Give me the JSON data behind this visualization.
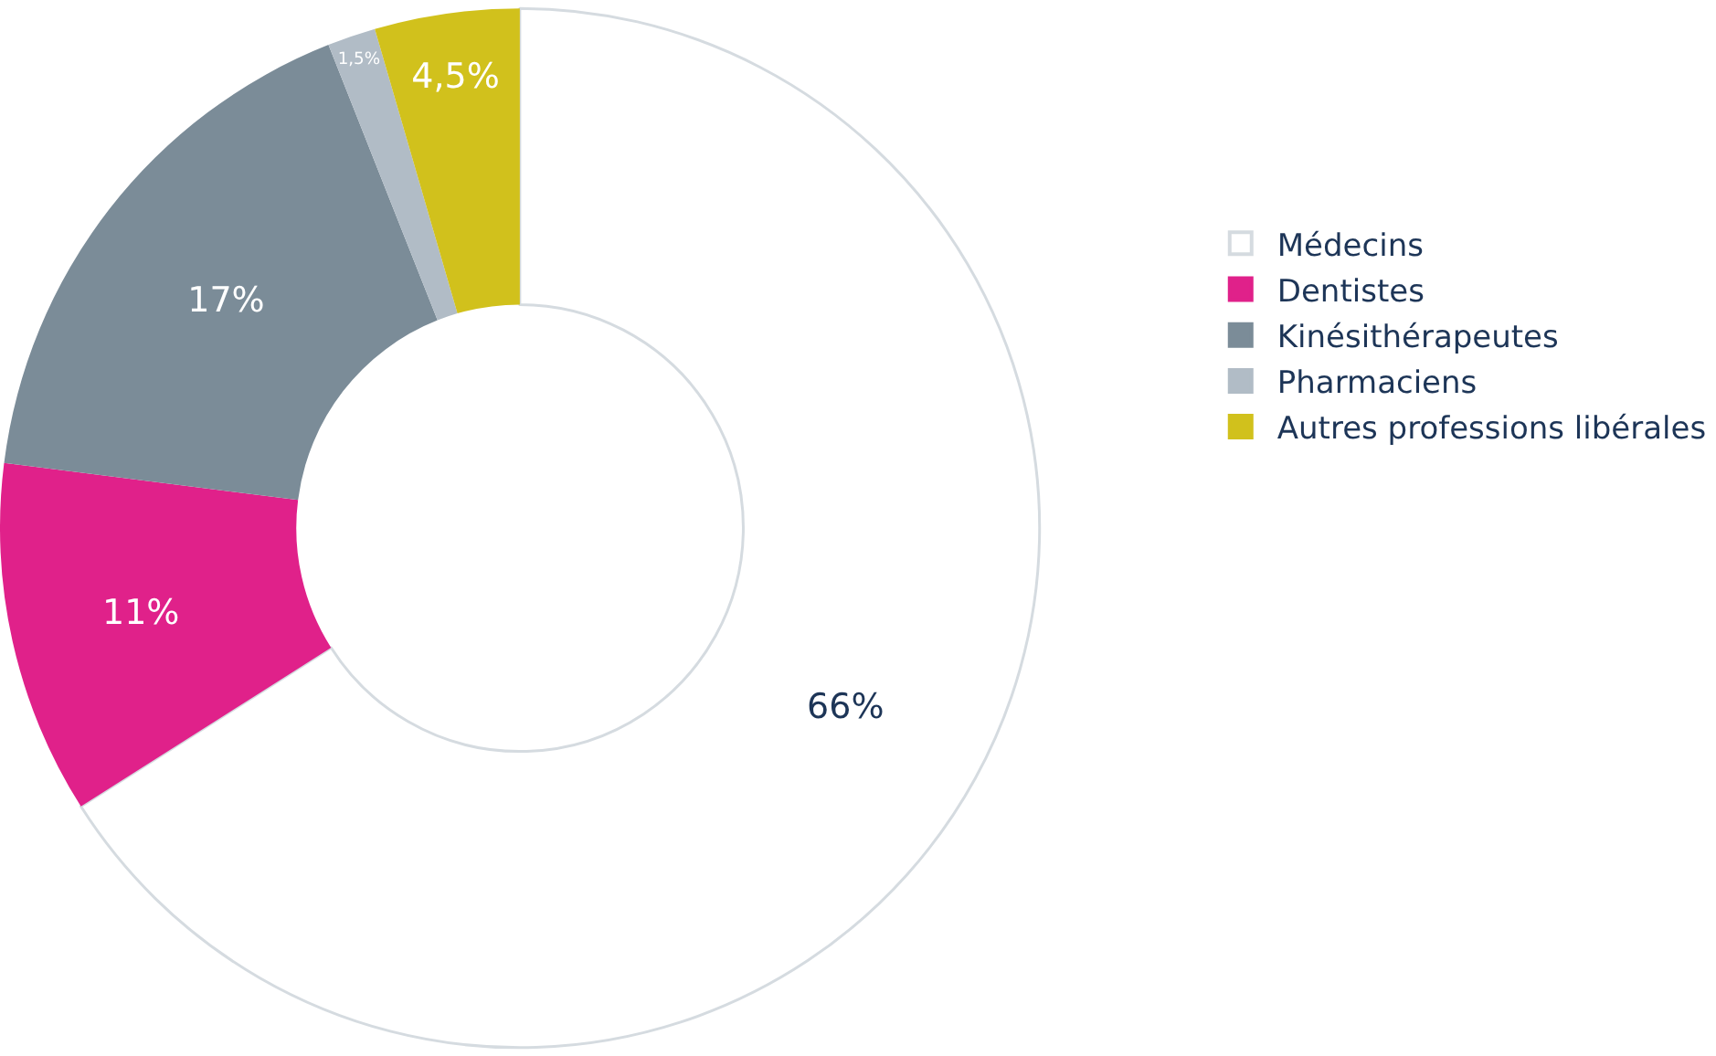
{
  "chart_data": {
    "type": "donut",
    "categories": [
      "Médecins",
      "Dentistes",
      "Kinésithérapeutes",
      "Pharmaciens",
      "Autres professions libérales"
    ],
    "values": [
      66,
      11,
      17,
      1.5,
      4.5
    ],
    "value_labels": [
      "66%",
      "11%",
      "17%",
      "1,5%",
      "4,5%"
    ],
    "colors": [
      "#ffffff",
      "#e0218a",
      "#7b8c98",
      "#b1bcc6",
      "#d1c11c"
    ],
    "legend": "right"
  }
}
